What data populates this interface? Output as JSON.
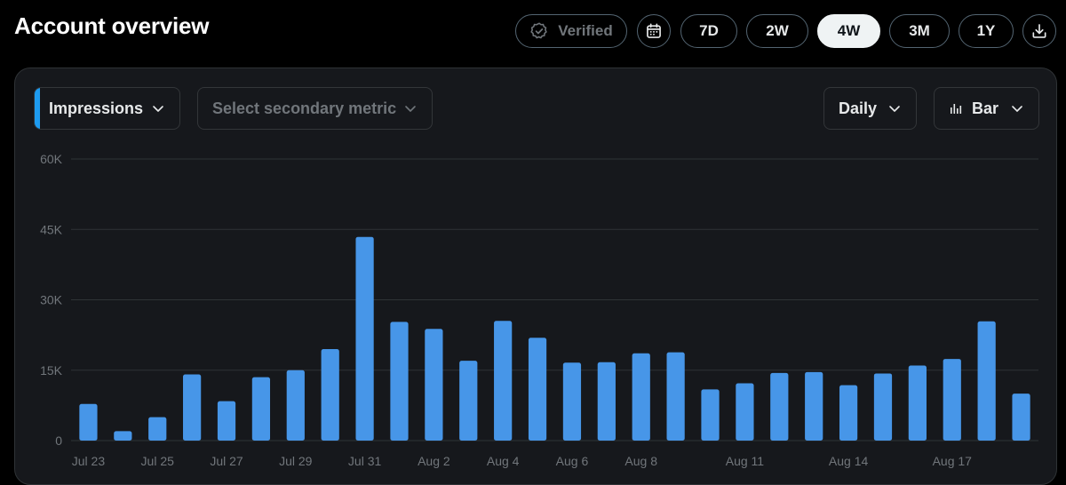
{
  "header": {
    "title": "Account overview"
  },
  "toolbar": {
    "verified_label": "Verified",
    "calendar_icon": "calendar-icon",
    "ranges": [
      "7D",
      "2W",
      "4W",
      "3M",
      "1Y"
    ],
    "active_range": "4W",
    "download_icon": "download-icon"
  },
  "controls": {
    "primary_metric": "Impressions",
    "secondary_metric_placeholder": "Select secondary metric",
    "interval": "Daily",
    "chart_type": "Bar"
  },
  "colors": {
    "accent": "#1d9bf0",
    "bar": "#4796e8",
    "grid": "#2f3336",
    "card_bg": "#16181c",
    "page_bg": "#000000"
  },
  "chart_data": {
    "type": "bar",
    "title": "",
    "xlabel": "",
    "ylabel": "",
    "ylim": [
      0,
      60000
    ],
    "yticks": [
      0,
      15000,
      30000,
      45000,
      60000
    ],
    "ytick_labels": [
      "0",
      "15K",
      "30K",
      "45K",
      "60K"
    ],
    "categories": [
      "Jul 23",
      "Jul 24",
      "Jul 25",
      "Jul 26",
      "Jul 27",
      "Jul 28",
      "Jul 29",
      "Jul 30",
      "Jul 31",
      "Aug 1",
      "Aug 2",
      "Aug 3",
      "Aug 4",
      "Aug 5",
      "Aug 6",
      "Aug 7",
      "Aug 8",
      "Aug 9",
      "Aug 10",
      "Aug 11",
      "Aug 12",
      "Aug 13",
      "Aug 14",
      "Aug 15",
      "Aug 16",
      "Aug 17",
      "Aug 18",
      "Aug 19"
    ],
    "xtick_labels": [
      "Jul 23",
      "Jul 25",
      "Jul 27",
      "Jul 29",
      "Jul 31",
      "Aug 2",
      "Aug 4",
      "Aug 6",
      "Aug 8",
      "Aug 11",
      "Aug 14",
      "Aug 17"
    ],
    "series": [
      {
        "values": [
          7800,
          2000,
          5000,
          14100,
          8400,
          13500,
          15000,
          19500,
          43400,
          25300,
          23800,
          17000,
          25500,
          21900,
          16600,
          16700,
          18600,
          18800,
          10900,
          12200,
          14400,
          14600,
          11800,
          14300,
          16000,
          17400,
          25400,
          10000
        ]
      }
    ],
    "grid": true,
    "legend": "none"
  }
}
